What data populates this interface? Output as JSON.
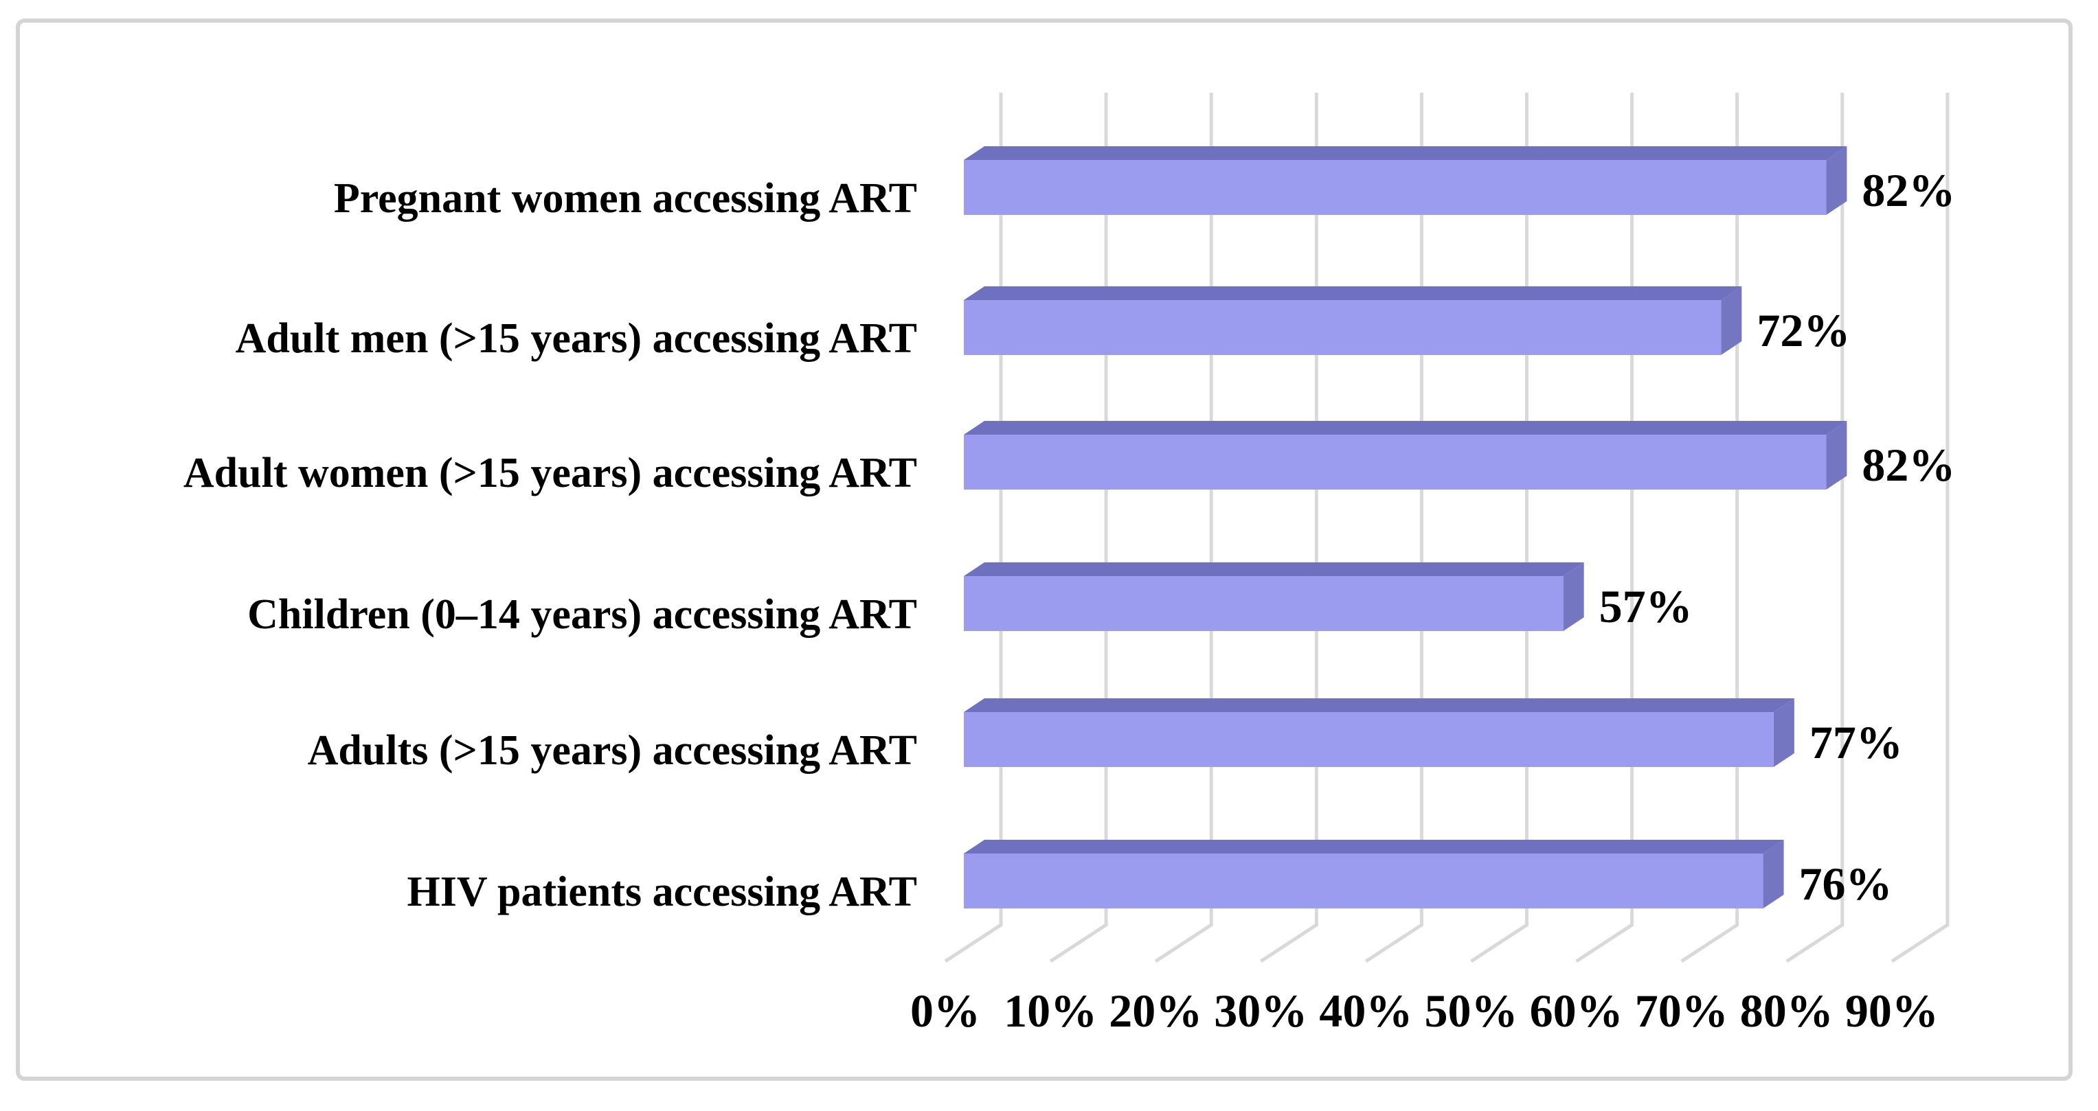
{
  "chart_data": {
    "type": "bar",
    "orientation": "horizontal",
    "effect": "3d",
    "title": "",
    "categories": [
      "Pregnant women accessing ART",
      "Adult men (>15 years) accessing ART",
      "Adult women (>15 years) accessing ART",
      "Children (0–14 years) accessing ART",
      "Adults (>15 years) accessing ART",
      "HIV patients accessing ART"
    ],
    "values": [
      82,
      72,
      82,
      57,
      77,
      76
    ],
    "data_labels": [
      "82%",
      "72%",
      "82%",
      "57%",
      "77%",
      "76%"
    ],
    "x_tick_labels": [
      "0%",
      "10%",
      "20%",
      "30%",
      "40%",
      "50%",
      "60%",
      "70%",
      "80%",
      "90%"
    ],
    "x_axis": {
      "min": 0,
      "max": 90,
      "step": 10,
      "unit": "%"
    },
    "grid": true,
    "legend": false,
    "colors": {
      "bar_front": "#9B9CEF",
      "bar_top": "#6F70BF",
      "bar_side": "#7476C2",
      "gridline": "#D9D9D9",
      "frame_border": "#D4D4D4",
      "text": "#000000",
      "background": "#FFFFFF"
    }
  }
}
